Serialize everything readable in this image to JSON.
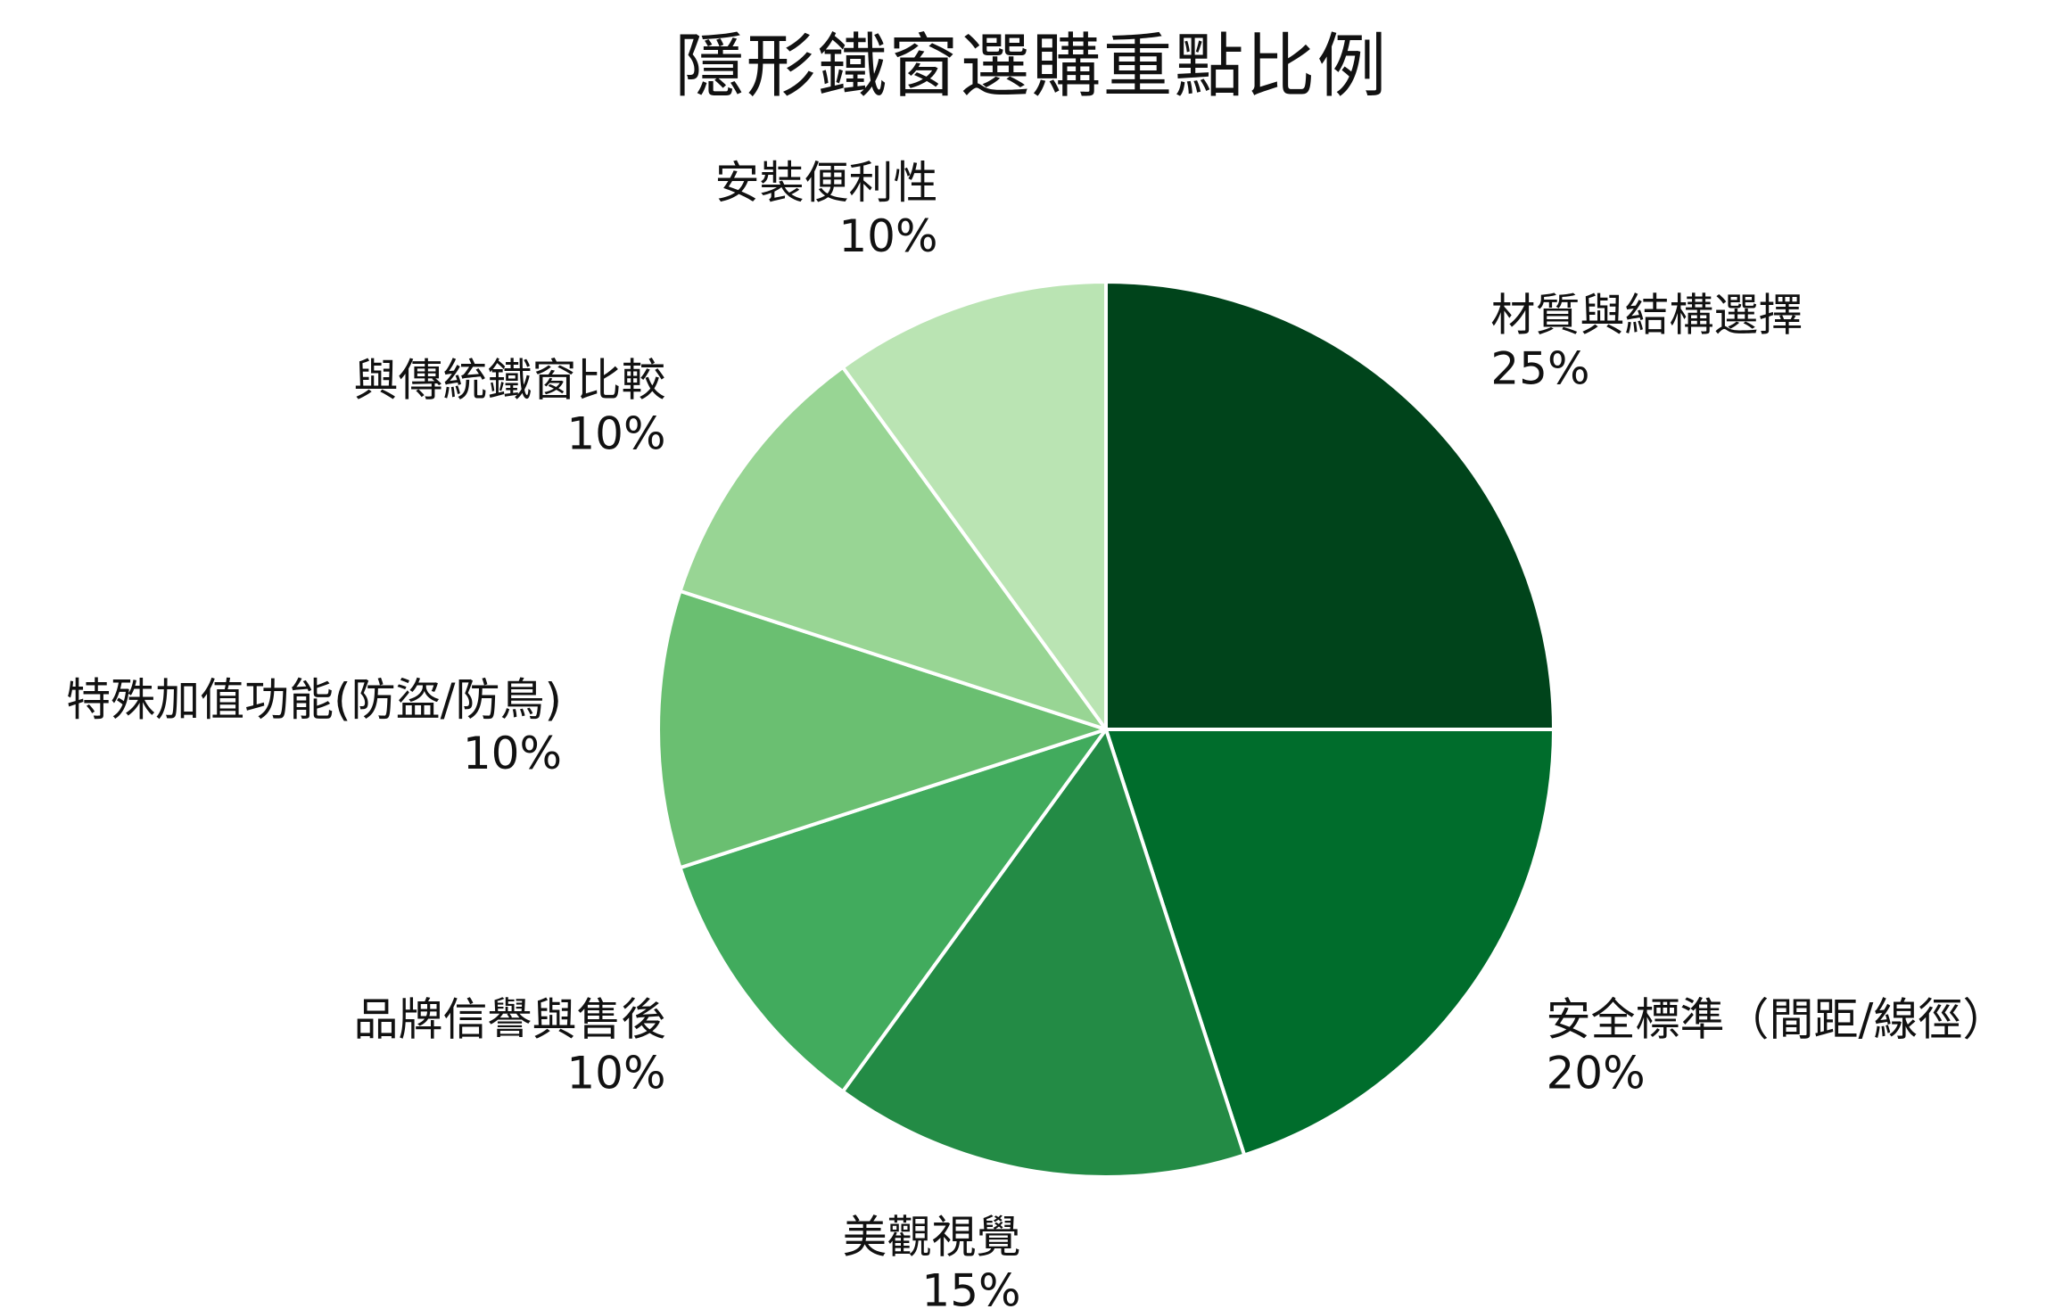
{
  "chart_data": {
    "type": "pie",
    "title": "隱形鐵窗選購重點比例",
    "categories": [
      "材質與結構選擇",
      "安全標準（間距/線徑）",
      "美觀視覺",
      "品牌信譽與售後",
      "特殊加值功能(防盜/防鳥)",
      "與傳統鐵窗比較",
      "安裝便利性"
    ],
    "values": [
      25,
      20,
      15,
      10,
      10,
      10,
      10
    ],
    "value_labels": [
      "25%",
      "20%",
      "15%",
      "10%",
      "10%",
      "10%",
      "10%"
    ],
    "unit": "%",
    "start_angle": "12 o'clock",
    "direction": "clockwise",
    "legend": "none (labels placed beside slices)",
    "colors": [
      "#00441b",
      "#006d2c",
      "#238b45",
      "#41ab5d",
      "#6abf71",
      "#98d594",
      "#bae4b3"
    ],
    "slice_border_color": "#ffffff"
  }
}
